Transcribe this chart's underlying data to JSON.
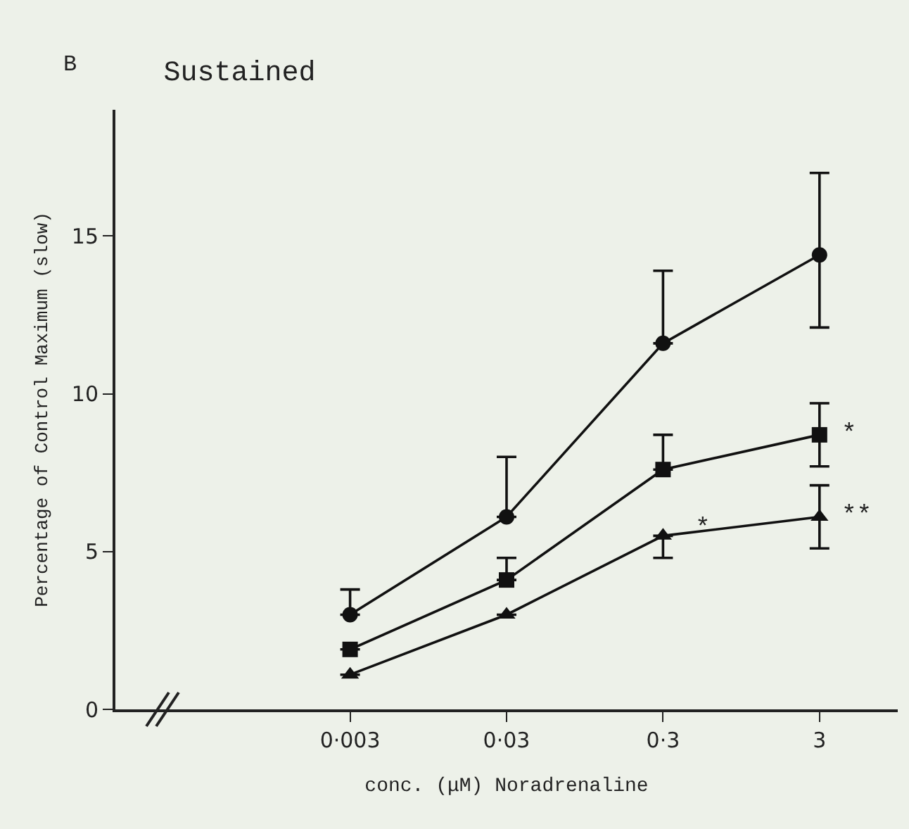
{
  "chart_data": {
    "type": "line",
    "title": "Sustained",
    "xlabel": "conc. (μM) Noradrenaline",
    "ylabel": "Percentage of Control Maximum (slow)",
    "categories": [
      "0·003",
      "0·03",
      "0·3",
      "3"
    ],
    "series": [
      {
        "color": "#111111",
        "marker": "circle",
        "values": [
          3.0,
          6.1,
          11.6,
          14.4
        ],
        "errors": [
          [
            3.0,
            3.8
          ],
          [
            6.1,
            8.0
          ],
          [
            11.6,
            13.9
          ],
          [
            12.1,
            17.0
          ]
        ]
      },
      {
        "color": "#111111",
        "marker": "square",
        "values": [
          1.9,
          4.1,
          7.6,
          8.7
        ],
        "errors": [
          null,
          [
            4.1,
            4.8
          ],
          [
            7.6,
            8.7
          ],
          [
            7.7,
            9.7
          ]
        ]
      },
      {
        "color": "#111111",
        "marker": "triangle",
        "values": [
          1.1,
          3.0,
          5.5,
          6.1
        ],
        "errors": [
          null,
          null,
          [
            4.8,
            5.5
          ],
          [
            5.1,
            7.1
          ]
        ]
      }
    ],
    "ylim": [
      0,
      19
    ],
    "yticks": [
      0,
      5,
      10,
      15
    ],
    "grid": false,
    "annotations": [
      "B",
      {
        "text": "*",
        "x": "3",
        "y": 8.7
      },
      {
        "text": "**",
        "x": "3",
        "y": 6.1
      },
      {
        "text": "*",
        "y": 5.7
      }
    ]
  }
}
